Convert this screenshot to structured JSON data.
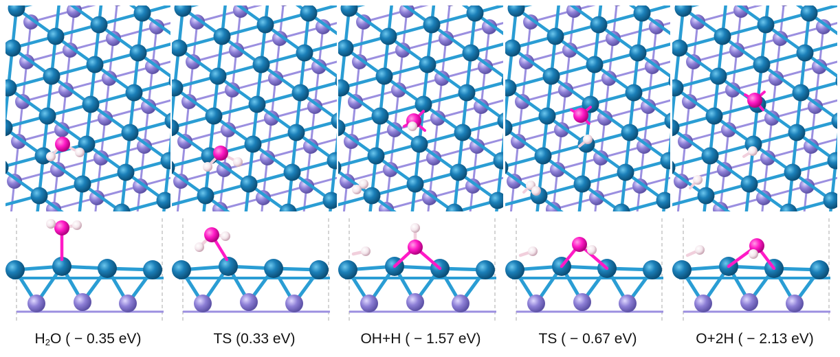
{
  "colors": {
    "metal_atom": "#1b7fb8",
    "metal_bond": "#2a9dd4",
    "substrate_atom": "#8d7fd6",
    "substrate_bond": "#9b8fe0",
    "oxygen": "#ff1ac6",
    "hydrogen": "#f4e6ec",
    "cell_boundary": "#aaaaaa"
  },
  "panels": [
    {
      "id": "h2o",
      "caption_main": "H",
      "caption_sub": "2",
      "caption_rest": "O ( − 0.35 eV)"
    },
    {
      "id": "ts1",
      "caption_main": "TS (0.33 eV)",
      "caption_sub": "",
      "caption_rest": ""
    },
    {
      "id": "ohh",
      "caption_main": "OH+H ( − 1.57 eV)",
      "caption_sub": "",
      "caption_rest": ""
    },
    {
      "id": "ts2",
      "caption_main": "TS ( − 0.67 eV)",
      "caption_sub": "",
      "caption_rest": ""
    },
    {
      "id": "o2h",
      "caption_main": "O+2H ( − 2.13 eV)",
      "caption_sub": "",
      "caption_rest": ""
    }
  ]
}
